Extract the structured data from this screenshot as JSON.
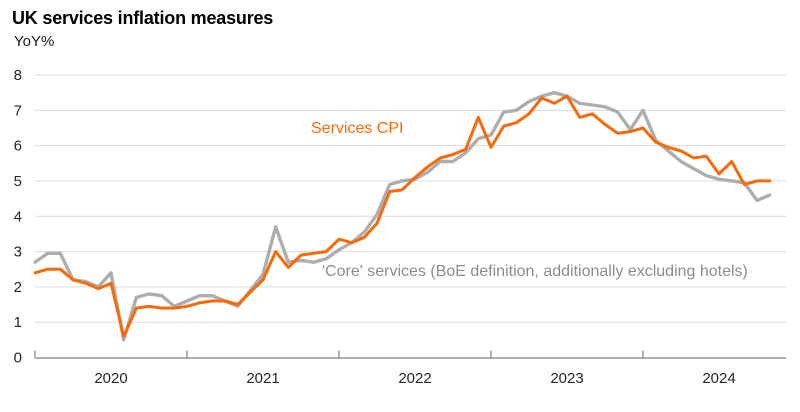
{
  "header": {
    "title": "UK services inflation measures",
    "unit_label": "YoY%"
  },
  "chart_data": {
    "type": "line",
    "title": "UK services inflation measures",
    "ylabel": "YoY%",
    "xlabel": "",
    "ylim": [
      0,
      8
    ],
    "yticks": [
      0,
      1,
      2,
      3,
      4,
      5,
      6,
      7,
      8
    ],
    "xticklabels": [
      "2020",
      "2021",
      "2022",
      "2023",
      "2024"
    ],
    "x_start": "2020-01",
    "x_end": "2024-11",
    "frequency": "monthly",
    "grid": "horizontal",
    "legend_position": "inline-labels",
    "colors": {
      "services_cpi": "#F8690A",
      "core_services_line": "#AEADAD",
      "core_services_label": "#8C8C8C",
      "gridline": "#D9D9D9",
      "axis": "#808080",
      "tick_text": "#262626"
    },
    "series": [
      {
        "name": "Services CPI",
        "color": "#F8690A",
        "values": [
          2.4,
          2.5,
          2.5,
          2.2,
          2.1,
          1.95,
          2.1,
          0.6,
          1.4,
          1.45,
          1.4,
          1.4,
          1.45,
          1.55,
          1.6,
          1.6,
          1.5,
          1.85,
          2.2,
          3.0,
          2.55,
          2.9,
          2.95,
          3.0,
          3.35,
          3.25,
          3.4,
          3.8,
          4.7,
          4.75,
          5.1,
          5.4,
          5.65,
          5.75,
          5.9,
          6.8,
          5.95,
          6.55,
          6.65,
          6.9,
          7.35,
          7.2,
          7.4,
          6.8,
          6.9,
          6.6,
          6.35,
          6.4,
          6.5,
          6.1,
          5.95,
          5.85,
          5.65,
          5.7,
          5.2,
          5.55,
          4.9,
          5.0,
          5.0
        ]
      },
      {
        "name": "'Core' services (BoE definition, additionally excluding hotels)",
        "color": "#AEADAD",
        "values": [
          2.7,
          2.95,
          2.95,
          2.2,
          2.15,
          2.0,
          2.4,
          0.5,
          1.7,
          1.8,
          1.75,
          1.45,
          1.6,
          1.75,
          1.75,
          1.6,
          1.45,
          1.9,
          2.35,
          3.7,
          2.7,
          2.75,
          2.7,
          2.8,
          3.05,
          3.25,
          3.55,
          4.05,
          4.9,
          5.0,
          5.05,
          5.25,
          5.55,
          5.55,
          5.8,
          6.2,
          6.3,
          6.95,
          7.0,
          7.25,
          7.4,
          7.5,
          7.4,
          7.2,
          7.15,
          7.1,
          6.95,
          6.45,
          7.0,
          6.15,
          5.85,
          5.55,
          5.35,
          5.15,
          5.05,
          5.0,
          4.95,
          4.45,
          4.6
        ]
      }
    ],
    "annotations": [
      {
        "text": "Services CPI",
        "color": "#F8690A"
      },
      {
        "text": "'Core' services (BoE definition, additionally excluding hotels)",
        "color": "#8C8C8C"
      }
    ]
  }
}
